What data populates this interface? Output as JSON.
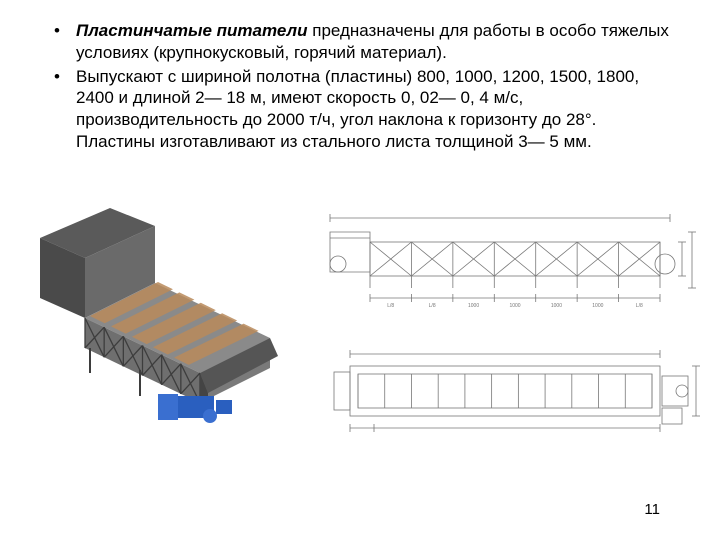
{
  "text": {
    "bullet1_bold": "Пластинчатые питатели",
    "bullet1_rest": " предназначены для работы в особо тяжелых условиях (крупнокусковый, горячий материал).",
    "bullet2": "Выпускают с шириной полотна (пластины) 800, 1000, 1200, 1500, 1800, 2400 и длиной 2— 18 м, имеют скорость 0, 02— 0, 4 м/с, производительность до 2000 т/ч, угол наклона к горизонту до 28°. Пластины изготавливают из стального листа толщиной 3— 5 мм."
  },
  "page_number": "11",
  "colors": {
    "text": "#000000",
    "bg": "#ffffff",
    "render_body": "#8a8a8a",
    "render_dark": "#4d4d4d",
    "render_motor_blue": "#2a5fbf",
    "render_plate": "#b88a5a",
    "drawing_line": "#777777",
    "drawing_hatch": "#888888"
  },
  "render": {
    "truss_bays": 6,
    "plate_rows": 5
  },
  "side_elevation": {
    "bays": 7,
    "dims_below": [
      "L/8",
      "L/8",
      "1000",
      "1000",
      "1000",
      "1000",
      "L/8"
    ]
  },
  "top_plan": {
    "crossbars": 11
  }
}
